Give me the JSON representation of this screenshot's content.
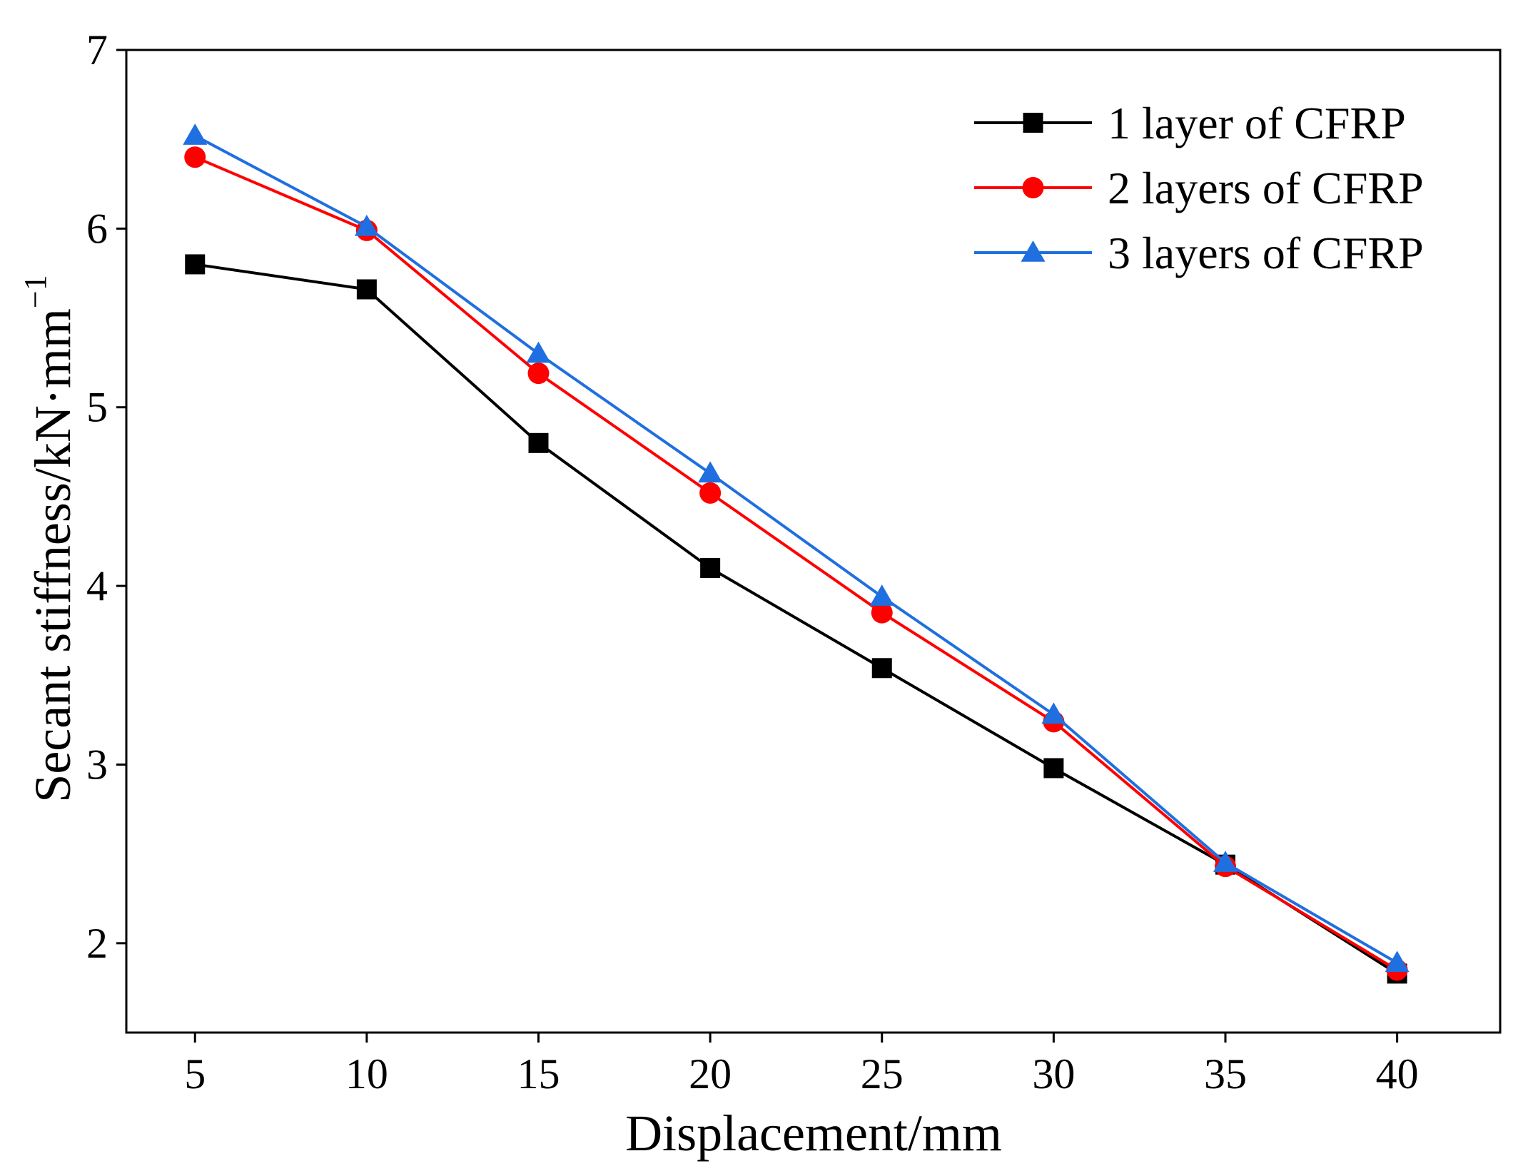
{
  "chart_data": {
    "type": "line",
    "xlabel": "Displacement/mm",
    "ylabel_main": "Secant stiffness/kN·mm",
    "ylabel_sup": "−1",
    "xlim": [
      3,
      43
    ],
    "ylim": [
      1.5,
      7
    ],
    "xticks": [
      5,
      10,
      15,
      20,
      25,
      30,
      35,
      40
    ],
    "yticks": [
      2,
      3,
      4,
      5,
      6,
      7
    ],
    "grid": false,
    "legend_position": "top-right",
    "series": [
      {
        "name": "1 layer of CFRP",
        "color": "#000000",
        "marker": "square",
        "x": [
          5,
          10,
          15,
          20,
          25,
          30,
          35,
          40
        ],
        "y": [
          5.8,
          5.66,
          4.8,
          4.1,
          3.54,
          2.98,
          2.44,
          1.83
        ]
      },
      {
        "name": "2 layers of CFRP",
        "color": "#ff0000",
        "marker": "circle",
        "x": [
          5,
          10,
          15,
          20,
          25,
          30,
          35,
          40
        ],
        "y": [
          6.4,
          5.99,
          5.19,
          4.52,
          3.85,
          3.24,
          2.43,
          1.85
        ]
      },
      {
        "name": "3 layers of CFRP",
        "color": "#1f6fe0",
        "marker": "triangle",
        "x": [
          5,
          10,
          15,
          20,
          25,
          30,
          35,
          40
        ],
        "y": [
          6.52,
          6.01,
          5.3,
          4.63,
          3.94,
          3.28,
          2.45,
          1.89
        ]
      }
    ]
  }
}
